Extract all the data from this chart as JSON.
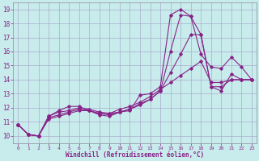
{
  "xlabel": "Windchill (Refroidissement éolien,°C)",
  "background_color": "#c8ecec",
  "line_color": "#882288",
  "grid_color": "#aaaacc",
  "xlim": [
    -0.5,
    23.5
  ],
  "ylim": [
    9.5,
    19.5
  ],
  "xticks": [
    0,
    1,
    2,
    3,
    4,
    5,
    6,
    7,
    8,
    9,
    10,
    11,
    12,
    13,
    14,
    15,
    16,
    17,
    18,
    19,
    20,
    21,
    22,
    23
  ],
  "yticks": [
    10,
    11,
    12,
    13,
    14,
    15,
    16,
    17,
    18,
    19
  ],
  "series": [
    {
      "x": [
        0,
        1,
        2,
        3,
        4,
        5,
        6,
        7,
        8,
        9,
        10,
        11,
        12,
        13,
        14,
        15,
        16,
        17,
        18,
        19,
        20,
        21,
        22,
        23
      ],
      "y": [
        10.8,
        10.1,
        10.0,
        11.4,
        11.8,
        12.1,
        12.1,
        11.8,
        11.6,
        11.5,
        11.7,
        11.8,
        12.9,
        13.0,
        13.5,
        18.6,
        19.0,
        18.5,
        17.2,
        13.5,
        13.2,
        14.4,
        14.0,
        14.0
      ]
    },
    {
      "x": [
        0,
        1,
        2,
        3,
        4,
        5,
        6,
        7,
        8,
        9,
        10,
        11,
        12,
        13,
        14,
        15,
        16,
        17,
        18,
        19,
        20,
        21,
        22,
        23
      ],
      "y": [
        10.8,
        10.1,
        10.0,
        11.4,
        11.7,
        11.8,
        12.0,
        11.9,
        11.7,
        11.6,
        11.7,
        11.9,
        12.2,
        12.6,
        13.2,
        16.0,
        18.6,
        18.5,
        15.8,
        14.9,
        14.8,
        15.6,
        14.9,
        14.0
      ]
    },
    {
      "x": [
        0,
        1,
        2,
        3,
        4,
        5,
        6,
        7,
        8,
        9,
        10,
        11,
        12,
        13,
        14,
        15,
        16,
        17,
        18,
        19,
        20,
        21,
        22,
        23
      ],
      "y": [
        10.8,
        10.1,
        10.0,
        11.3,
        11.5,
        11.7,
        11.9,
        11.8,
        11.5,
        11.4,
        11.7,
        11.9,
        12.3,
        12.6,
        13.2,
        14.5,
        15.8,
        17.2,
        17.2,
        13.5,
        13.5,
        14.0,
        14.0,
        14.0
      ]
    },
    {
      "x": [
        0,
        1,
        2,
        3,
        4,
        5,
        6,
        7,
        8,
        9,
        10,
        11,
        12,
        13,
        14,
        15,
        16,
        17,
        18,
        19,
        20,
        21,
        22,
        23
      ],
      "y": [
        10.8,
        10.1,
        10.0,
        11.2,
        11.4,
        11.6,
        11.8,
        11.8,
        11.6,
        11.6,
        11.9,
        12.1,
        12.4,
        12.8,
        13.3,
        13.8,
        14.3,
        14.8,
        15.3,
        13.8,
        13.8,
        14.0,
        14.0,
        14.0
      ]
    }
  ]
}
